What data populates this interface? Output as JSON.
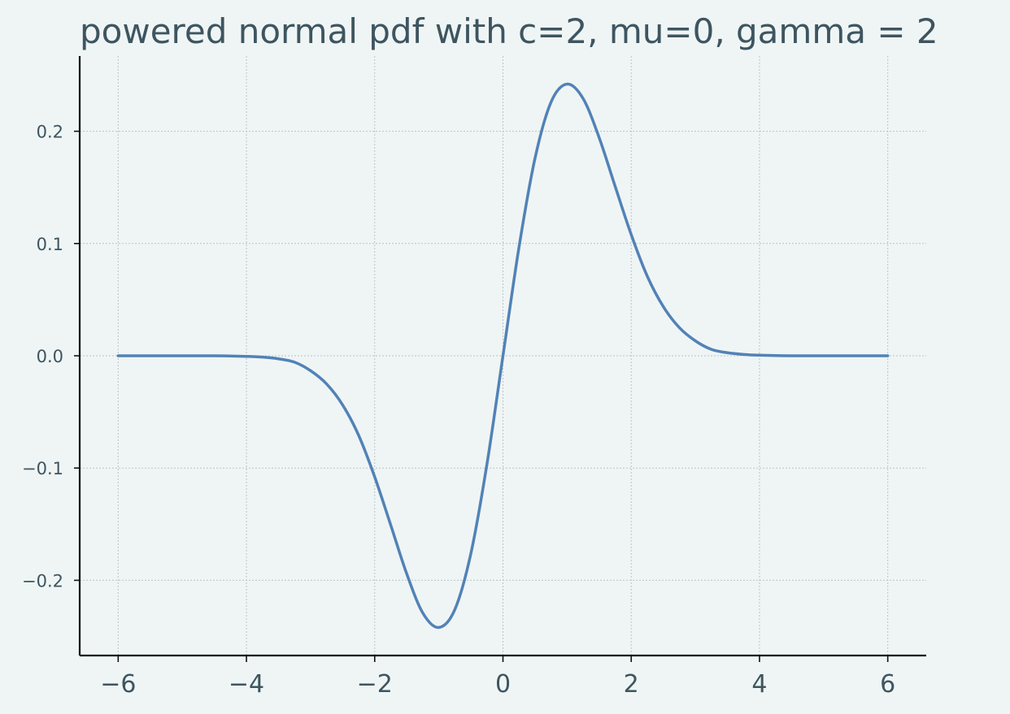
{
  "chart_data": {
    "type": "line",
    "title": "powered normal pdf with c=2, mu=0, gamma = 2",
    "xlabel": "",
    "ylabel": "",
    "xlim": [
      -6.6,
      6.6
    ],
    "ylim": [
      -0.267,
      0.267
    ],
    "grid": true,
    "x_ticks": [
      -6,
      -4,
      -2,
      0,
      2,
      4,
      6
    ],
    "x_tick_labels": [
      "−6",
      "−4",
      "−2",
      "0",
      "2",
      "4",
      "6"
    ],
    "y_ticks": [
      -0.2,
      -0.1,
      0.0,
      0.1,
      0.2
    ],
    "y_tick_labels": [
      "−0.2",
      "−0.1",
      "0.0",
      "0.1",
      "0.2"
    ],
    "line_color": "#5282b6",
    "series": [
      {
        "x": [
          -6.0,
          -5.5,
          -5.0,
          -4.5,
          -4.0,
          -3.75,
          -3.5,
          -3.25,
          -3.0,
          -2.75,
          -2.5,
          -2.25,
          -2.0,
          -1.75,
          -1.5,
          -1.25,
          -1.0,
          -0.75,
          -0.5,
          -0.25,
          0.0,
          0.25,
          0.5,
          0.75,
          1.0,
          1.25,
          1.5,
          1.75,
          2.0,
          2.25,
          2.5,
          2.75,
          3.0,
          3.25,
          3.5,
          3.75,
          4.0,
          4.5,
          5.0,
          5.5,
          6.0
        ],
        "values": [
          0.0,
          0.0,
          0.0,
          0.0,
          -0.0005,
          -0.0012,
          -0.0027,
          -0.0057,
          -0.0133,
          -0.0251,
          -0.0438,
          -0.0709,
          -0.1079,
          -0.1508,
          -0.1943,
          -0.2291,
          -0.242,
          -0.226,
          -0.176,
          -0.0967,
          0.0,
          0.0967,
          0.176,
          0.226,
          0.242,
          0.2291,
          0.1943,
          0.1508,
          0.1079,
          0.0709,
          0.0438,
          0.0251,
          0.0133,
          0.0057,
          0.0027,
          0.0012,
          0.0005,
          0.0,
          0.0,
          0.0,
          0.0
        ]
      }
    ]
  }
}
